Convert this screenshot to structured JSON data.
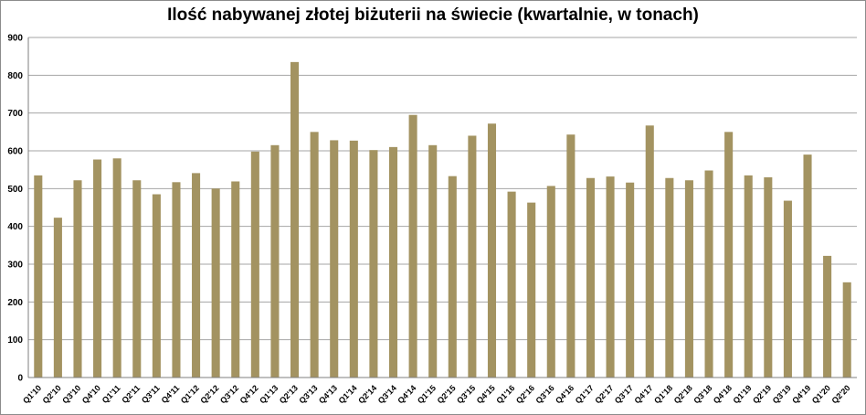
{
  "chart_data": {
    "type": "bar",
    "title": "Ilość nabywanej złotej biżuterii na świecie (kwartalnie, w tonach)",
    "xlabel": "",
    "ylabel": "",
    "ylim": [
      0,
      900
    ],
    "yticks": [
      0,
      100,
      200,
      300,
      400,
      500,
      600,
      700,
      800,
      900
    ],
    "grid": true,
    "legend": "none",
    "bar_color": "#a39361",
    "categories": [
      "Q1'10",
      "Q2'10",
      "Q3'10",
      "Q4'10",
      "Q1'11",
      "Q2'11",
      "Q3'11",
      "Q4'11",
      "Q1'12",
      "Q2'12",
      "Q3'12",
      "Q4'12",
      "Q1'13",
      "Q2'13",
      "Q3'13",
      "Q4'13",
      "Q1'14",
      "Q2'14",
      "Q3'14",
      "Q4'14",
      "Q1'15",
      "Q2'15",
      "Q3'15",
      "Q4'15",
      "Q1'16",
      "Q2'16",
      "Q3'16",
      "Q4'16",
      "Q1'17",
      "Q2'17",
      "Q3'17",
      "Q4'17",
      "Q1'18",
      "Q2'18",
      "Q3'18",
      "Q4'18",
      "Q1'19",
      "Q2'19",
      "Q3'19",
      "Q4'19",
      "Q1'20",
      "Q2'20"
    ],
    "values": [
      535,
      423,
      522,
      577,
      580,
      522,
      485,
      517,
      541,
      500,
      519,
      598,
      615,
      835,
      650,
      628,
      627,
      602,
      610,
      695,
      615,
      533,
      640,
      672,
      492,
      463,
      507,
      643,
      528,
      532,
      516,
      667,
      528,
      522,
      548,
      650,
      535,
      530,
      468,
      590,
      322,
      252
    ]
  }
}
